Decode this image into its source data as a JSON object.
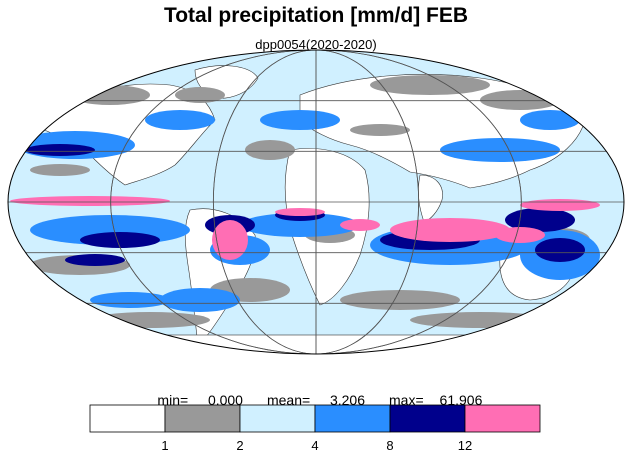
{
  "title": "Total precipitation [mm/d] FEB",
  "subtitle": "dpp0054(2020-2020)",
  "stats": {
    "min_label": "min=",
    "min_value": "0.000",
    "mean_label": "mean=",
    "mean_value": "3.206",
    "max_label": "max=",
    "max_value": "61.906"
  },
  "colorbar": {
    "colors": [
      "#ffffff",
      "#999999",
      "#d0f0ff",
      "#2a8eff",
      "#00008c",
      "#ff6eb4"
    ],
    "tick_labels": [
      "1",
      "2",
      "4",
      "8",
      "12"
    ]
  },
  "map": {
    "projection": "Mollweide",
    "ocean_color": "#d0f0ff",
    "land_color": "#ffffff",
    "coastline_color": "#333333",
    "grid_color": "#555555"
  }
}
